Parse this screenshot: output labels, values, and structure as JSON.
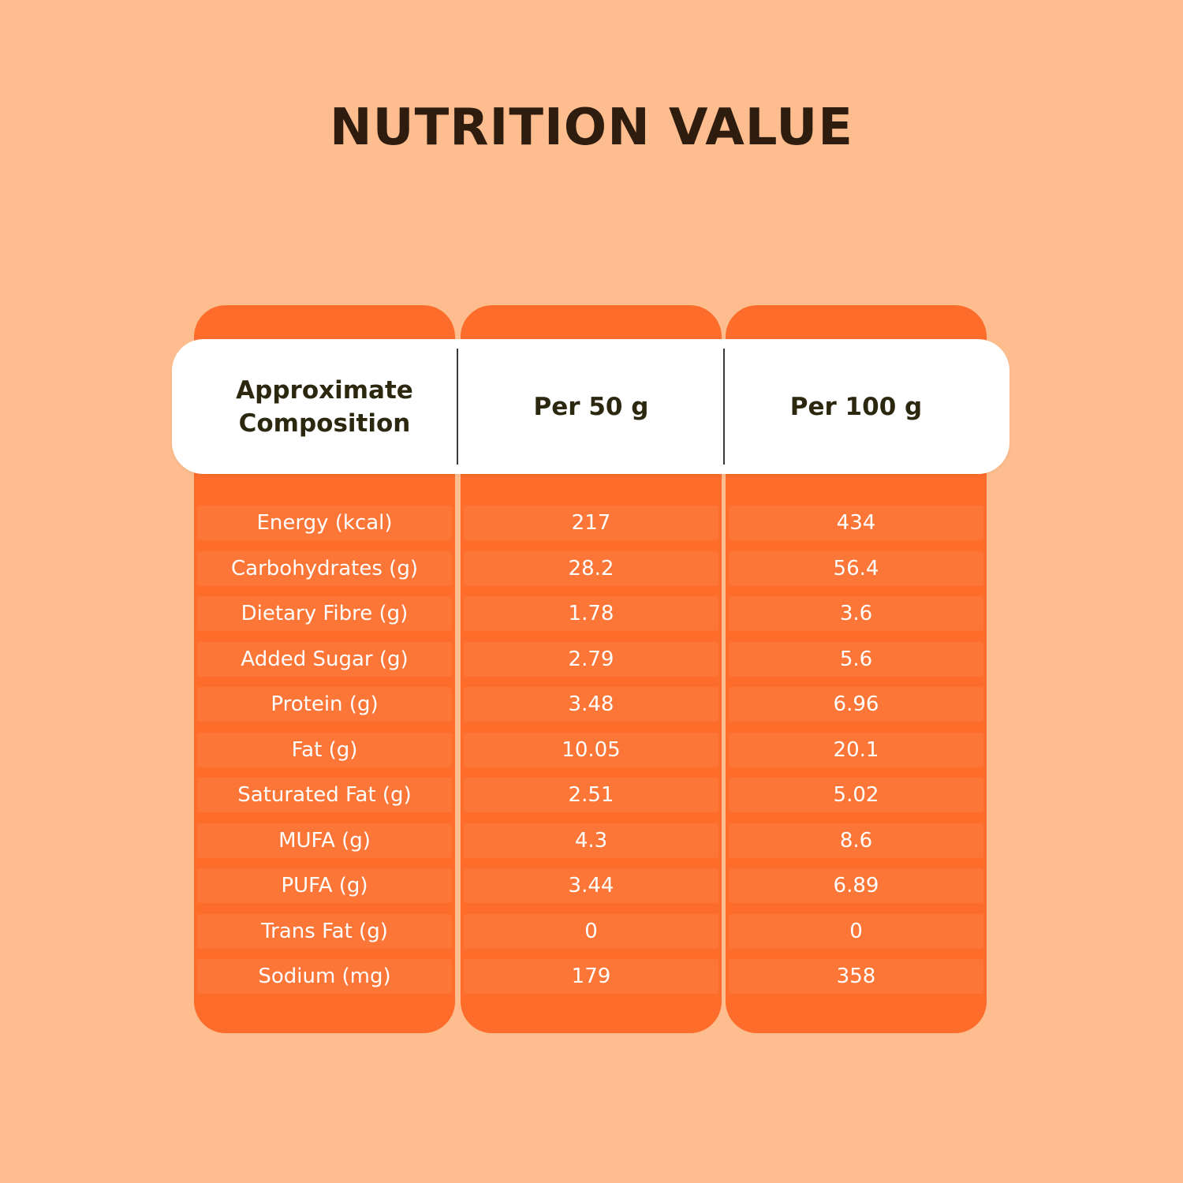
{
  "title": "NUTRITION VALUE",
  "colors": {
    "background": "#FDBD8E",
    "column": "#FD6C2A",
    "row_band": "#FC7637",
    "header_bg": "#FFFFFF",
    "title_text": "#2E1C0E",
    "header_text": "#2C2810",
    "cell_text": "#FFFFFF"
  },
  "table": {
    "headers": [
      "Approximate\nComposition",
      "Per 50 g",
      "Per 100 g"
    ],
    "rows": [
      {
        "label": "Energy (kcal)",
        "per_50g": "217",
        "per_100g": "434"
      },
      {
        "label": "Carbohydrates (g)",
        "per_50g": "28.2",
        "per_100g": "56.4"
      },
      {
        "label": "Dietary Fibre (g)",
        "per_50g": "1.78",
        "per_100g": "3.6"
      },
      {
        "label": "Added Sugar (g)",
        "per_50g": "2.79",
        "per_100g": "5.6"
      },
      {
        "label": "Protein (g)",
        "per_50g": "3.48",
        "per_100g": "6.96"
      },
      {
        "label": "Fat (g)",
        "per_50g": "10.05",
        "per_100g": "20.1"
      },
      {
        "label": "Saturated Fat (g)",
        "per_50g": "2.51",
        "per_100g": "5.02"
      },
      {
        "label": "MUFA (g)",
        "per_50g": "4.3",
        "per_100g": "8.6"
      },
      {
        "label": "PUFA (g)",
        "per_50g": "3.44",
        "per_100g": "6.89"
      },
      {
        "label": "Trans Fat (g)",
        "per_50g": "0",
        "per_100g": "0"
      },
      {
        "label": "Sodium (mg)",
        "per_50g": "179",
        "per_100g": "358"
      }
    ]
  }
}
